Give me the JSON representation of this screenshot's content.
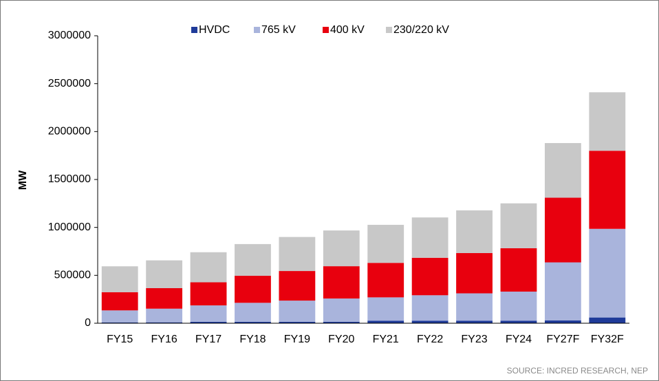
{
  "chart_data": {
    "type": "stacked_bar",
    "y_label": "MW",
    "source": "SOURCE: INCRED RESEARCH, NEP",
    "categories": [
      "FY15",
      "FY16",
      "FY17",
      "FY18",
      "FY19",
      "FY20",
      "FY21",
      "FY22",
      "FY23",
      "FY24",
      "FY27F",
      "FY32F"
    ],
    "series": [
      {
        "name": "HVDC",
        "color": "#1f3b99",
        "values": [
          9000,
          9500,
          15000,
          15000,
          15000,
          15500,
          27000,
          27000,
          27000,
          27000,
          30000,
          60000
        ]
      },
      {
        "name": "765 kV",
        "color": "#a9b4dc",
        "values": [
          125000,
          142500,
          171000,
          198000,
          221000,
          242500,
          243000,
          265000,
          285000,
          303000,
          605000,
          925000
        ]
      },
      {
        "name": "400 kV",
        "color": "#e8000e",
        "values": [
          190000,
          214000,
          241000,
          282000,
          309000,
          337000,
          360000,
          391000,
          420000,
          453000,
          675000,
          815000
        ]
      },
      {
        "name": "230/220 kV",
        "color": "#c8c8c8",
        "values": [
          270000,
          290000,
          314000,
          331000,
          355000,
          373000,
          397000,
          421000,
          446000,
          468000,
          570000,
          610000
        ]
      }
    ],
    "ylim": [
      0,
      3000000
    ],
    "yticks": [
      0,
      500000,
      1000000,
      1500000,
      2000000,
      2500000,
      3000000
    ],
    "grid": false,
    "legend": "top"
  }
}
